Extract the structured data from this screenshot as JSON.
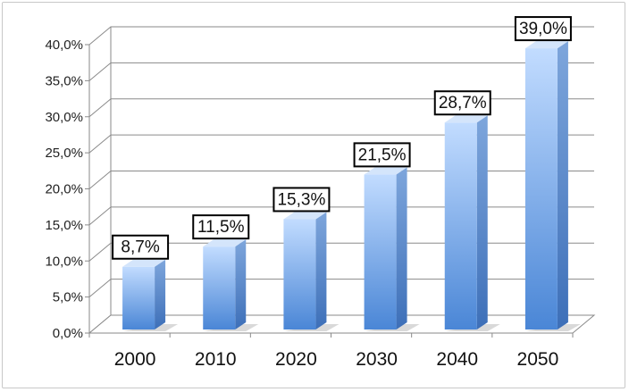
{
  "chart_data": {
    "type": "bar",
    "style": "3d-column",
    "categories": [
      "2000",
      "2010",
      "2020",
      "2030",
      "2040",
      "2050"
    ],
    "values": [
      8.7,
      11.5,
      15.3,
      21.5,
      28.7,
      39.0
    ],
    "data_labels": [
      "8,7%",
      "11,5%",
      "15,3%",
      "21,5%",
      "28,7%",
      "39,0%"
    ],
    "y_tick_labels": [
      "0,0%",
      "5,0%",
      "10,0%",
      "15,0%",
      "20,0%",
      "25,0%",
      "30,0%",
      "35,0%",
      "40,0%"
    ],
    "ylim": [
      0,
      40
    ],
    "ytick_step": 5,
    "title": "",
    "xlabel": "",
    "ylabel": "",
    "grid": true,
    "legend": "none",
    "colors": {
      "bar_top": "#c2dcff",
      "bar_bottom": "#4a86d6",
      "bar_side": "#3d6fb8",
      "bar_cap": "#d4e5fb",
      "grid": "#8a8a8a",
      "label_border": "#000000",
      "label_fill": "#ffffff"
    }
  }
}
